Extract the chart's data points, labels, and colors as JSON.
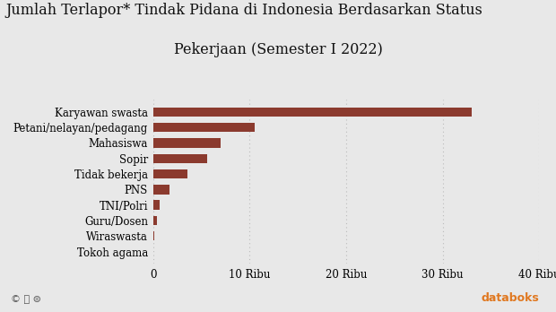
{
  "title_line1": "Jumlah Terlapor* Tindak Pidana di Indonesia Berdasarkan Status",
  "title_line2": "Pekerjaan (Semester I 2022)",
  "categories": [
    "Tokoh agama",
    "Wiraswasta",
    "Guru/Dosen",
    "TNI/Polri",
    "PNS",
    "Tidak bekerja",
    "Sopir",
    "Mahasiswa",
    "Petani/nelayan/pedagang",
    "Karyawan swasta"
  ],
  "values": [
    60,
    150,
    380,
    680,
    1700,
    3600,
    5600,
    7000,
    10500,
    33000
  ],
  "bar_color": "#8B3A2E",
  "background_color": "#E8E8E8",
  "xlim": [
    0,
    40000
  ],
  "xtick_values": [
    0,
    10000,
    20000,
    30000,
    40000
  ],
  "xtick_labels": [
    "0",
    "10 Ribu",
    "20 Ribu",
    "30 Ribu",
    "40 Ribu"
  ],
  "title_fontsize": 11.5,
  "tick_fontsize": 8.5,
  "bar_height": 0.6,
  "grid_color": "#bbbbbb",
  "footer_cc": "© ⓒ ⊜",
  "footer_brand": "databoks",
  "footer_brand_color": "#E07820"
}
